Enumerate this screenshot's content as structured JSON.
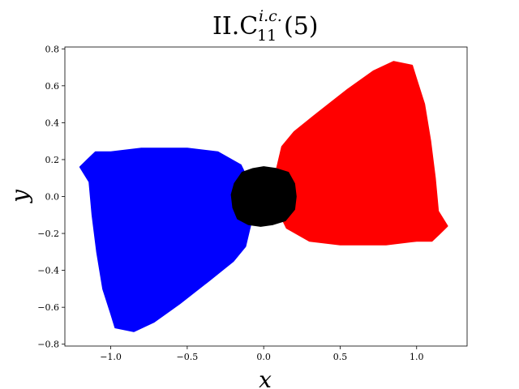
{
  "chart_data": {
    "type": "line",
    "title": {
      "main": "II.C",
      "superscript": "i.c.",
      "subscript": "11",
      "suffix": "(5)"
    },
    "xlabel": "x",
    "ylabel": "y",
    "xlim": [
      -1.3,
      1.33
    ],
    "ylim": [
      -0.81,
      0.81
    ],
    "xticks": [
      -1.0,
      -0.5,
      0.0,
      0.5,
      1.0
    ],
    "xtick_labels": [
      "−1.0",
      "−0.5",
      "0.0",
      "0.5",
      "1.0"
    ],
    "yticks": [
      -0.8,
      -0.6,
      -0.4,
      -0.2,
      0.0,
      0.2,
      0.4,
      0.6,
      0.8
    ],
    "ytick_labels": [
      "−0.8",
      "−0.6",
      "−0.4",
      "−0.2",
      "0.0",
      "0.2",
      "0.4",
      "0.6",
      "0.8"
    ],
    "grid": false,
    "series": [
      {
        "color": "#ff0000",
        "points": [
          [
            0.08,
            0.13
          ],
          [
            0.12,
            0.27
          ],
          [
            0.2,
            0.35
          ],
          [
            0.35,
            0.45
          ],
          [
            0.55,
            0.58
          ],
          [
            0.72,
            0.68
          ],
          [
            0.85,
            0.73
          ],
          [
            0.97,
            0.71
          ],
          [
            1.0,
            0.63
          ],
          [
            1.05,
            0.5
          ],
          [
            1.09,
            0.3
          ],
          [
            1.12,
            0.1
          ],
          [
            1.14,
            -0.08
          ],
          [
            1.2,
            -0.16
          ],
          [
            1.15,
            -0.2
          ],
          [
            1.1,
            -0.24
          ],
          [
            1.0,
            -0.24
          ],
          [
            0.8,
            -0.26
          ],
          [
            0.5,
            -0.26
          ],
          [
            0.3,
            -0.24
          ],
          [
            0.15,
            -0.17
          ],
          [
            0.08,
            -0.05
          ]
        ]
      },
      {
        "color": "#0000ff",
        "points": [
          [
            -0.08,
            -0.13
          ],
          [
            -0.12,
            -0.27
          ],
          [
            -0.2,
            -0.35
          ],
          [
            -0.35,
            -0.45
          ],
          [
            -0.55,
            -0.58
          ],
          [
            -0.72,
            -0.68
          ],
          [
            -0.85,
            -0.73
          ],
          [
            -0.97,
            -0.71
          ],
          [
            -1.0,
            -0.63
          ],
          [
            -1.05,
            -0.5
          ],
          [
            -1.09,
            -0.3
          ],
          [
            -1.12,
            -0.1
          ],
          [
            -1.14,
            0.08
          ],
          [
            -1.2,
            0.16
          ],
          [
            -1.15,
            0.2
          ],
          [
            -1.1,
            0.24
          ],
          [
            -1.0,
            0.24
          ],
          [
            -0.8,
            0.26
          ],
          [
            -0.5,
            0.26
          ],
          [
            -0.3,
            0.24
          ],
          [
            -0.15,
            0.17
          ],
          [
            -0.08,
            0.05
          ]
        ]
      },
      {
        "color": "#000000",
        "points": [
          [
            0.0,
            0.16
          ],
          [
            0.08,
            0.15
          ],
          [
            0.16,
            0.13
          ],
          [
            0.2,
            0.07
          ],
          [
            0.21,
            0.0
          ],
          [
            0.2,
            -0.07
          ],
          [
            0.14,
            -0.13
          ],
          [
            0.06,
            -0.15
          ],
          [
            -0.02,
            -0.16
          ],
          [
            -0.1,
            -0.15
          ],
          [
            -0.17,
            -0.12
          ],
          [
            -0.2,
            -0.06
          ],
          [
            -0.21,
            0.01
          ],
          [
            -0.19,
            0.07
          ],
          [
            -0.14,
            0.13
          ],
          [
            -0.07,
            0.15
          ]
        ]
      }
    ]
  }
}
